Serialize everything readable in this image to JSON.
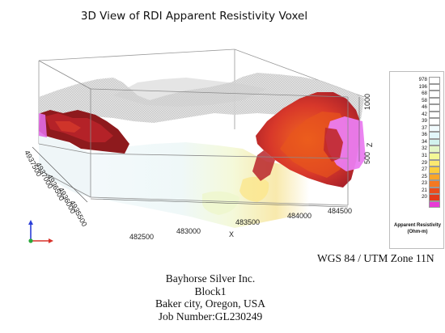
{
  "title": "3D View of RDI Apparent Resistivity Voxel",
  "axes": {
    "x": {
      "label": "X",
      "ticks": [
        "482500",
        "483000",
        "483500",
        "484000",
        "484500"
      ]
    },
    "y": {
      "ticks": [
        "4937500",
        "4937000",
        "4936500",
        "4936000",
        "4935500"
      ]
    },
    "z": {
      "label": "Z",
      "ticks": [
        "500",
        "1000"
      ]
    }
  },
  "legend": {
    "title_line1": "Apparent Resistivity",
    "title_line2": "(Ohm-m)",
    "classes": [
      {
        "label": "978",
        "color": "#ffffff"
      },
      {
        "label": "196",
        "color": "#ffffff"
      },
      {
        "label": "68",
        "color": "#ffffff"
      },
      {
        "label": "58",
        "color": "#ffffff"
      },
      {
        "label": "46",
        "color": "#ffffff"
      },
      {
        "label": "42",
        "color": "#ffffff"
      },
      {
        "label": "39",
        "color": "#ffffff"
      },
      {
        "label": "37",
        "color": "#f1fbfe"
      },
      {
        "label": "36",
        "color": "#e2f6fa"
      },
      {
        "label": "34",
        "color": "#d2f2ee"
      },
      {
        "label": "32",
        "color": "#e4f6c6"
      },
      {
        "label": "31",
        "color": "#f3f896"
      },
      {
        "label": "29",
        "color": "#fbe870"
      },
      {
        "label": "27",
        "color": "#fbce3c"
      },
      {
        "label": "25",
        "color": "#f8a62a"
      },
      {
        "label": "23",
        "color": "#f37822"
      },
      {
        "label": "21",
        "color": "#ea4c1c"
      },
      {
        "label": "20",
        "color": "#e43a1a"
      },
      {
        "label": "",
        "color": "#e83bd6"
      }
    ]
  },
  "crs": "WGS 84 / UTM Zone 11N",
  "info": {
    "company": "Bayhorse Silver Inc.",
    "block": "Block1",
    "location": "Baker city, Oregon, USA",
    "job": "Job Number:GL230249"
  },
  "colors": {
    "conductor_dark": "#8e1a1d",
    "conductor_mid": "#c0282a",
    "conductor_orange": "#e8561c",
    "magenta": "#ea7cf0",
    "terrain": "#d6d6d6"
  }
}
